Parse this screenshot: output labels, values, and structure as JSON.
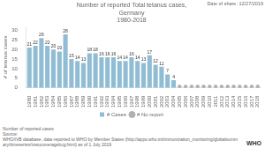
{
  "chart_data": {
    "type": "bar",
    "title": "Number of reported Total tetanus cases,\nGermany\n1980-2018",
    "y_label": "# of tetanus cases",
    "annotations": [
      "Date of share: 12/27/2019",
      "Number of reported cases\nSource:\nWHO/IVB database, data reported to WHO by Member States (http://apps.who.int/immunization_monitoring/globalsummary/timeseries/tswucoveragebcg.html) as of 1 July 2019",
      "WHO"
    ],
    "categories": [
      "1980",
      "1981",
      "1982",
      "1983",
      "1984",
      "1985",
      "1986",
      "1987",
      "1988",
      "1989",
      "1990",
      "1991",
      "1992",
      "1993",
      "1994",
      "1995",
      "1996",
      "1997",
      "1998",
      "1999",
      "2000",
      "2001",
      "2002",
      "2003",
      "2004",
      "2005",
      "2006",
      "2007",
      "2008",
      "2009",
      "2010",
      "2011",
      "2012",
      "2013",
      "2014",
      "2015",
      "2016",
      "2017",
      "2018"
    ],
    "series": [
      {
        "name": "# Cases",
        "color": "#91bdd4",
        "values": [
          21,
          22,
          26,
          22,
          20,
          19,
          28,
          15,
          14,
          13,
          18,
          18,
          16,
          16,
          16,
          14,
          14,
          16,
          14,
          13,
          17,
          12,
          11,
          7,
          4,
          null,
          null,
          null,
          null,
          null,
          null,
          null,
          null,
          null,
          null,
          null,
          null,
          null,
          null
        ]
      },
      {
        "name": "# No report",
        "color": "#b0b0b0",
        "type": "scatter",
        "marker": "circle",
        "values": [
          null,
          null,
          null,
          null,
          null,
          null,
          null,
          null,
          null,
          null,
          null,
          null,
          null,
          null,
          null,
          null,
          null,
          null,
          null,
          null,
          null,
          null,
          null,
          null,
          null,
          0.6,
          0.6,
          0.6,
          0.6,
          0.6,
          0.6,
          0.6,
          0.6,
          0.6,
          0.6,
          0.6,
          0.6,
          0.6,
          0.6
        ]
      }
    ],
    "ylim": [
      0,
      32
    ],
    "yticks": [
      0,
      5,
      10,
      15,
      20,
      25,
      30
    ],
    "grid": false,
    "legend": "bottom",
    "data_labels": true
  }
}
